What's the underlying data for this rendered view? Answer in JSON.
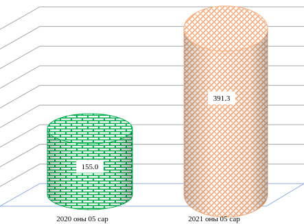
{
  "chart_data": {
    "type": "bar",
    "categories": [
      "2020 оны 05 сар",
      "2021 оны 05 сар"
    ],
    "series": [
      {
        "values": [
          155.0,
          391.3
        ]
      }
    ],
    "data_labels": [
      "155.0",
      "391.3"
    ],
    "ylim": [
      0,
      450
    ],
    "gridlines": 9,
    "grid": true,
    "legend": false,
    "style": "3d-cylinder",
    "colors": {
      "grid": "#a6a6a6",
      "floor": "#8eaadb",
      "series_0": "#00b050",
      "series_0_pattern": "brick",
      "series_1": "#f4b183",
      "series_1_pattern": "weave"
    }
  }
}
